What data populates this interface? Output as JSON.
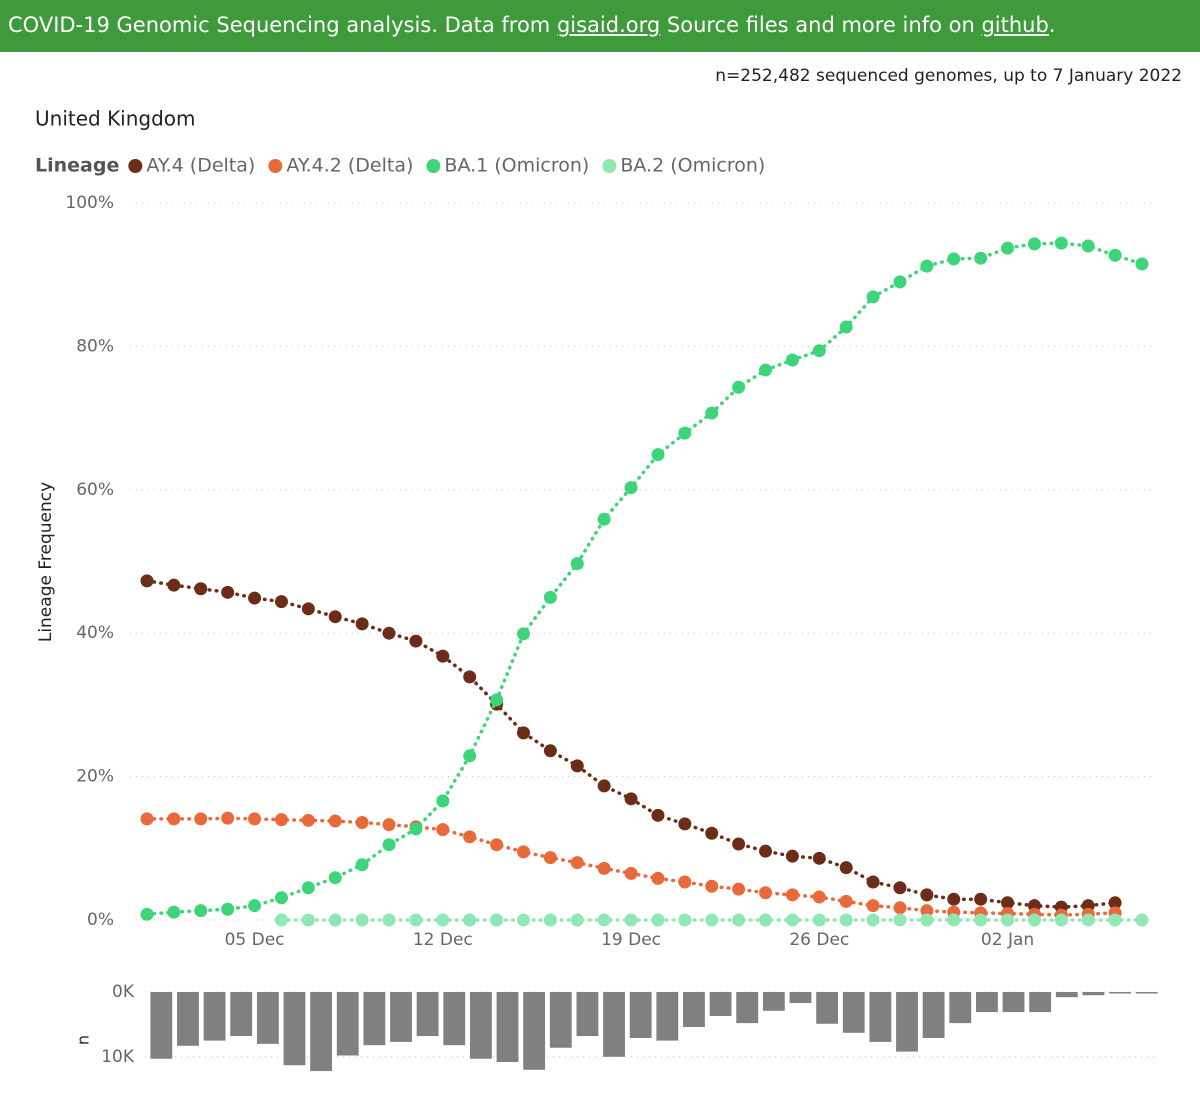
{
  "header": {
    "text_1": "COVID-19 Genomic Sequencing analysis. Data from ",
    "link_1": "gisaid.org",
    "text_2": " Source files and more info on ",
    "link_2": "github",
    "text_3": "."
  },
  "chart_data": [
    {
      "type": "line",
      "title": "United Kingdom",
      "subtitle": "n=252,482 sequenced genomes, up to 7 January 2022",
      "legend_title": "Lineage",
      "ylabel": "Lineage Frequency",
      "x": [
        "01 Dec",
        "02 Dec",
        "03 Dec",
        "04 Dec",
        "05 Dec",
        "06 Dec",
        "07 Dec",
        "08 Dec",
        "09 Dec",
        "10 Dec",
        "11 Dec",
        "12 Dec",
        "13 Dec",
        "14 Dec",
        "15 Dec",
        "16 Dec",
        "17 Dec",
        "18 Dec",
        "19 Dec",
        "20 Dec",
        "21 Dec",
        "22 Dec",
        "23 Dec",
        "24 Dec",
        "25 Dec",
        "26 Dec",
        "27 Dec",
        "28 Dec",
        "29 Dec",
        "30 Dec",
        "31 Dec",
        "01 Jan",
        "02 Jan",
        "03 Jan",
        "04 Jan",
        "05 Jan",
        "06 Jan",
        "07 Jan"
      ],
      "xticks": [
        "05 Dec",
        "12 Dec",
        "19 Dec",
        "26 Dec",
        "02 Jan"
      ],
      "ylim": [
        0,
        100
      ],
      "yticks": [
        {
          "value": 0,
          "label": "0%"
        },
        {
          "value": 20,
          "label": "20%"
        },
        {
          "value": 40,
          "label": "40%"
        },
        {
          "value": 60,
          "label": "60%"
        },
        {
          "value": 80,
          "label": "80%"
        },
        {
          "value": 100,
          "label": "100%"
        }
      ],
      "grid": true,
      "series": [
        {
          "name": "AY.4 (Delta)",
          "color": "#6b2d18",
          "values": [
            47.3,
            46.7,
            46.2,
            45.7,
            44.9,
            44.4,
            43.4,
            42.3,
            41.3,
            40.0,
            38.9,
            36.8,
            33.9,
            30.1,
            26.1,
            23.6,
            21.5,
            18.7,
            16.9,
            14.6,
            13.4,
            12.1,
            10.6,
            9.6,
            8.9,
            8.6,
            7.3,
            5.3,
            4.5,
            3.5,
            2.9,
            2.9,
            2.4,
            2.0,
            1.8,
            2.0,
            2.4,
            null
          ]
        },
        {
          "name": "AY.4.2 (Delta)",
          "color": "#e8693a",
          "values": [
            14.1,
            14.1,
            14.1,
            14.2,
            14.1,
            14.0,
            13.9,
            13.8,
            13.6,
            13.3,
            13.0,
            12.6,
            11.6,
            10.5,
            9.5,
            8.7,
            8.0,
            7.2,
            6.5,
            5.8,
            5.3,
            4.7,
            4.3,
            3.8,
            3.5,
            3.2,
            2.6,
            2.0,
            1.7,
            1.3,
            1.1,
            1.0,
            0.9,
            0.8,
            0.7,
            0.8,
            1.0,
            null
          ]
        },
        {
          "name": "BA.1 (Omicron)",
          "color": "#3dd47a",
          "values": [
            0.8,
            1.1,
            1.3,
            1.5,
            2.0,
            3.1,
            4.5,
            5.9,
            7.7,
            10.5,
            12.7,
            16.6,
            22.9,
            30.7,
            39.9,
            45.0,
            49.7,
            55.9,
            60.3,
            64.9,
            67.9,
            70.7,
            74.3,
            76.7,
            78.1,
            79.4,
            82.7,
            86.9,
            89.0,
            91.2,
            92.2,
            92.3,
            93.7,
            94.3,
            94.4,
            94.0,
            92.7,
            91.5
          ]
        },
        {
          "name": "BA.2 (Omicron)",
          "color": "#8fe8b4",
          "values": [
            null,
            null,
            null,
            null,
            null,
            0,
            0,
            0,
            0,
            0,
            0,
            0,
            0,
            0,
            0,
            0,
            0,
            0,
            0,
            0,
            0,
            0,
            0,
            0,
            0,
            0,
            0,
            0,
            0,
            0,
            0,
            0,
            0,
            0,
            0,
            0,
            0,
            0
          ]
        }
      ]
    },
    {
      "type": "bar",
      "ylabel": "n",
      "color": "#808080",
      "ylim": [
        0,
        12500
      ],
      "yticks": [
        {
          "value": 0,
          "label": "0K"
        },
        {
          "value": 10000,
          "label": "10K"
        }
      ],
      "values": [
        10300,
        8300,
        7500,
        6800,
        8000,
        11300,
        12200,
        9800,
        8200,
        7700,
        6800,
        8200,
        10300,
        10800,
        12000,
        8600,
        6800,
        10000,
        7100,
        7500,
        5400,
        3700,
        4800,
        2900,
        1700,
        4900,
        6300,
        7700,
        9200,
        7100,
        4800,
        3100,
        3100,
        3100,
        800,
        500,
        200,
        200
      ]
    }
  ]
}
